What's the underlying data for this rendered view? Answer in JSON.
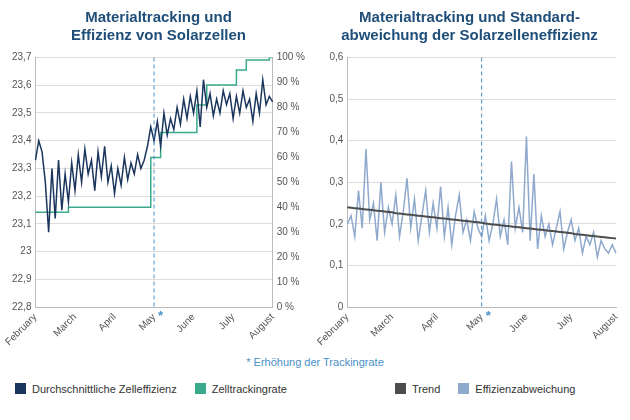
{
  "chart_data": [
    {
      "type": "line",
      "title": [
        "Materialtracking und",
        "Effizienz von Solarzellen"
      ],
      "categories": [
        "February",
        null,
        null,
        null,
        null,
        null,
        null,
        null,
        null,
        null,
        null,
        null,
        "March",
        null,
        null,
        null,
        null,
        null,
        null,
        null,
        null,
        null,
        null,
        null,
        "April",
        null,
        null,
        null,
        null,
        null,
        null,
        null,
        null,
        null,
        null,
        null,
        "May",
        null,
        null,
        null,
        null,
        null,
        null,
        null,
        null,
        null,
        null,
        null,
        "June",
        null,
        null,
        null,
        null,
        null,
        null,
        null,
        null,
        null,
        null,
        null,
        "July",
        null,
        null,
        null,
        null,
        null,
        null,
        null,
        null,
        null,
        null,
        null,
        "August"
      ],
      "series": [
        {
          "name": "Durchschnittliche Zelleffizienz",
          "color": "#1b365d",
          "line_style": "solid",
          "values": [
            23.33,
            23.4,
            23.36,
            23.25,
            23.07,
            23.3,
            23.12,
            23.33,
            23.15,
            23.28,
            23.18,
            23.32,
            23.22,
            23.35,
            23.25,
            23.37,
            23.28,
            23.33,
            23.22,
            23.36,
            23.27,
            23.38,
            23.25,
            23.31,
            23.21,
            23.3,
            23.24,
            23.34,
            23.26,
            23.32,
            23.28,
            23.35,
            23.3,
            23.33,
            23.38,
            23.45,
            23.4,
            23.47,
            23.38,
            23.5,
            23.42,
            23.48,
            23.44,
            23.52,
            23.46,
            23.55,
            23.48,
            23.56,
            23.5,
            23.58,
            23.45,
            23.62,
            23.52,
            23.57,
            23.49,
            23.55,
            23.5,
            23.58,
            23.53,
            23.57,
            23.48,
            23.56,
            23.5,
            23.58,
            23.52,
            23.55,
            23.47,
            23.57,
            23.5,
            23.62,
            23.53,
            23.56,
            23.54
          ]
        },
        {
          "name": "Zelltrackingrate",
          "color": "#3aaa8c",
          "line_style": "step",
          "axis": "y2",
          "values": [
            38,
            38,
            38,
            38,
            38,
            38,
            38,
            38,
            38,
            38,
            40,
            40,
            40,
            40,
            40,
            40,
            40,
            40,
            40,
            40,
            40,
            40,
            40,
            40,
            40,
            40,
            40,
            40,
            40,
            40,
            40,
            40,
            40,
            40,
            40,
            60,
            60,
            60,
            70,
            70,
            70,
            70,
            70,
            70,
            70,
            70,
            70,
            70,
            70,
            81,
            81,
            81,
            89,
            89,
            89,
            89,
            89,
            89,
            89,
            89,
            89,
            95,
            95,
            95,
            99,
            99,
            99,
            99,
            99,
            99,
            99,
            100,
            100
          ]
        }
      ],
      "ylim": [
        22.8,
        23.7
      ],
      "yticks": [
        {
          "value": 22.8,
          "label": "22,8"
        },
        {
          "value": 22.9,
          "label": "22,9"
        },
        23,
        {
          "value": 23.1,
          "label": "23,1"
        },
        {
          "value": 23.2,
          "label": "23,2"
        },
        {
          "value": 23.3,
          "label": "23,3"
        },
        {
          "value": 23.4,
          "label": "23,4"
        },
        {
          "value": 23.5,
          "label": "23,5"
        },
        {
          "value": 23.6,
          "label": "23,6"
        },
        {
          "value": 23.7,
          "label": "23,7"
        }
      ],
      "y2lim": [
        0,
        100
      ],
      "y2ticks": [
        {
          "value": 0,
          "label": "0 %"
        },
        {
          "value": 10,
          "label": "10 %"
        },
        {
          "value": 20,
          "label": "20 %"
        },
        {
          "value": 30,
          "label": "30 %"
        },
        {
          "value": 40,
          "label": "40 %"
        },
        {
          "value": 50,
          "label": "50 %"
        },
        {
          "value": 60,
          "label": "60 %"
        },
        {
          "value": 70,
          "label": "70 %"
        },
        {
          "value": 80,
          "label": "80 %"
        },
        {
          "value": 90,
          "label": "90 %"
        },
        {
          "value": 100,
          "label": "100 %"
        }
      ],
      "annotations": [
        {
          "x": "May",
          "text": "*",
          "line_style": "dashed"
        }
      ],
      "footnote": "* Erhöhung der Trackingrate",
      "grid": true,
      "legend": "bottom"
    },
    {
      "type": "line",
      "title": [
        "Materialtracking und Standard-",
        "abweichung der Solarzelleneffizienz"
      ],
      "categories": [
        "February",
        null,
        null,
        null,
        null,
        null,
        null,
        null,
        null,
        null,
        null,
        null,
        "March",
        null,
        null,
        null,
        null,
        null,
        null,
        null,
        null,
        null,
        null,
        null,
        "April",
        null,
        null,
        null,
        null,
        null,
        null,
        null,
        null,
        null,
        null,
        null,
        "May",
        null,
        null,
        null,
        null,
        null,
        null,
        null,
        null,
        null,
        null,
        null,
        "June",
        null,
        null,
        null,
        null,
        null,
        null,
        null,
        null,
        null,
        null,
        null,
        "July",
        null,
        null,
        null,
        null,
        null,
        null,
        null,
        null,
        null,
        null,
        null,
        "August"
      ],
      "series": [
        {
          "name": "Trend",
          "color": "#4d4d4d",
          "line_style": "solid",
          "values": [
            0.24,
            0.239,
            0.238,
            0.237,
            0.236,
            0.235,
            0.234,
            0.233,
            0.232,
            0.231,
            0.23,
            0.229,
            0.228,
            0.226,
            0.225,
            0.224,
            0.223,
            0.222,
            0.221,
            0.22,
            0.219,
            0.218,
            0.217,
            0.216,
            0.215,
            0.214,
            0.213,
            0.212,
            0.211,
            0.21,
            0.209,
            0.208,
            0.207,
            0.206,
            0.205,
            0.204,
            0.203,
            0.201,
            0.2,
            0.199,
            0.198,
            0.197,
            0.196,
            0.195,
            0.194,
            0.193,
            0.192,
            0.191,
            0.19,
            0.189,
            0.188,
            0.187,
            0.186,
            0.185,
            0.184,
            0.183,
            0.182,
            0.181,
            0.18,
            0.179,
            0.178,
            0.176,
            0.175,
            0.174,
            0.173,
            0.172,
            0.171,
            0.17,
            0.169,
            0.168,
            0.167,
            0.166,
            0.165
          ]
        },
        {
          "name": "Effizienzabweichung",
          "color": "#8fa9cc",
          "line_style": "solid",
          "values": [
            0.2,
            0.22,
            0.17,
            0.28,
            0.19,
            0.38,
            0.21,
            0.25,
            0.16,
            0.3,
            0.18,
            0.24,
            0.2,
            0.27,
            0.17,
            0.23,
            0.31,
            0.19,
            0.26,
            0.16,
            0.22,
            0.28,
            0.18,
            0.25,
            0.19,
            0.29,
            0.17,
            0.24,
            0.15,
            0.22,
            0.27,
            0.18,
            0.21,
            0.16,
            0.23,
            0.19,
            0.17,
            0.22,
            0.16,
            0.2,
            0.26,
            0.17,
            0.21,
            0.15,
            0.35,
            0.19,
            0.24,
            0.18,
            0.41,
            0.16,
            0.32,
            0.14,
            0.22,
            0.17,
            0.2,
            0.15,
            0.19,
            0.23,
            0.14,
            0.18,
            0.21,
            0.16,
            0.19,
            0.13,
            0.17,
            0.15,
            0.18,
            0.12,
            0.16,
            0.14,
            0.13,
            0.15,
            0.13
          ]
        }
      ],
      "ylim": [
        0,
        0.6
      ],
      "yticks": [
        0,
        {
          "value": 0.1,
          "label": "0,1"
        },
        {
          "value": 0.2,
          "label": "0,2"
        },
        {
          "value": 0.3,
          "label": "0,3"
        },
        {
          "value": 0.4,
          "label": "0,4"
        },
        {
          "value": 0.5,
          "label": "0,5"
        },
        {
          "value": 0.6,
          "label": "0,6"
        }
      ],
      "annotations": [
        {
          "x": "May",
          "text": "*",
          "line_style": "dashed"
        }
      ],
      "grid": true,
      "legend": "bottom"
    }
  ]
}
